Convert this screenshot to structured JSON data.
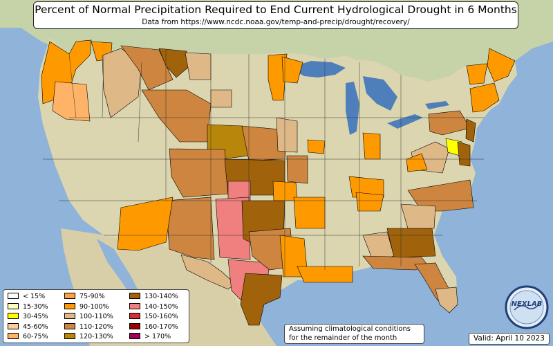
{
  "title": "Percent of Normal Precipitation Required to End Current Hydrological Drought in 6 Months",
  "subtitle": "Data from https://www.ncdc.noaa.gov/temp-and-precip/drought/recovery/",
  "legend": [
    {
      "label": "< 15%",
      "color": "#ffffff"
    },
    {
      "label": "15-30%",
      "color": "#ffffc0"
    },
    {
      "label": "30-45%",
      "color": "#ffff00"
    },
    {
      "label": "45-60%",
      "color": "#ffcc99"
    },
    {
      "label": "60-75%",
      "color": "#ffb366"
    },
    {
      "label": "75-90%",
      "color": "#ffa040"
    },
    {
      "label": "90-100%",
      "color": "#ff9900"
    },
    {
      "label": "100-110%",
      "color": "#deb887"
    },
    {
      "label": "110-120%",
      "color": "#cd853f"
    },
    {
      "label": "120-130%",
      "color": "#b8860b"
    },
    {
      "label": "130-140%",
      "color": "#a0620a"
    },
    {
      "label": "140-150%",
      "color": "#f08080"
    },
    {
      "label": "150-160%",
      "color": "#d03030"
    },
    {
      "label": "160-170%",
      "color": "#990000"
    },
    {
      "label": "> 170%",
      "color": "#a0005a"
    }
  ],
  "note_line1": "Assuming climatological conditions",
  "note_line2": "for the remainder of the month",
  "valid": "Valid: April 10 2023",
  "logo_text": "NEXLAB",
  "colors": {
    "ocean": "#8fb3d9",
    "land": "#dcd6b0",
    "canada": "#c6d2a8",
    "mexico": "#d8cfa8",
    "lakes": "#4f7fba"
  }
}
